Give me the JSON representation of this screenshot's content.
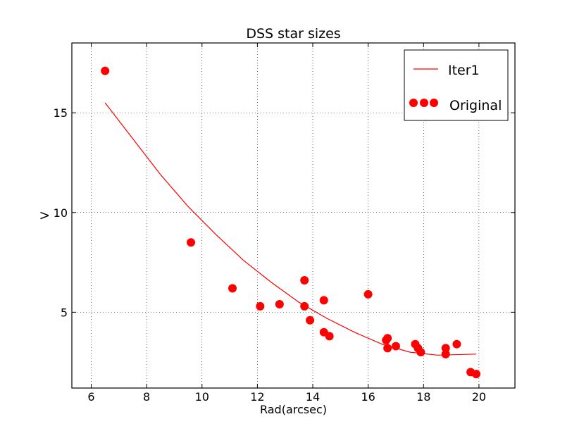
{
  "chart_data": {
    "type": "scatter",
    "title": "DSS star sizes",
    "xlabel": "Rad(arcsec)",
    "ylabel": "V",
    "xlim": [
      5.3,
      21.3
    ],
    "ylim": [
      1.2,
      18.5
    ],
    "xticks": [
      6,
      8,
      10,
      12,
      14,
      16,
      18,
      20
    ],
    "yticks": [
      5,
      10,
      15
    ],
    "grid": true,
    "legend_position": "top-right",
    "series": [
      {
        "name": "Iter1",
        "kind": "line",
        "color": "#ff0000",
        "x": [
          6.5,
          7.5,
          8.5,
          9.5,
          10.5,
          11.5,
          12.5,
          13.5,
          14.5,
          15.5,
          16.5,
          17.5,
          18.5,
          19.9
        ],
        "y": [
          15.5,
          13.7,
          11.9,
          10.3,
          8.9,
          7.6,
          6.5,
          5.5,
          4.7,
          4.0,
          3.4,
          3.0,
          2.85,
          2.9
        ]
      },
      {
        "name": "Original",
        "kind": "scatter",
        "color": "#ff0000",
        "x": [
          6.5,
          9.6,
          11.1,
          12.1,
          12.8,
          13.7,
          13.7,
          13.9,
          14.4,
          14.4,
          14.6,
          16.0,
          16.65,
          16.7,
          16.7,
          17.0,
          17.7,
          17.8,
          17.9,
          18.8,
          18.8,
          19.2,
          19.7,
          19.9
        ],
        "y": [
          17.1,
          8.5,
          6.2,
          5.3,
          5.4,
          6.6,
          5.3,
          4.6,
          5.6,
          4.0,
          3.8,
          5.9,
          3.6,
          3.7,
          3.2,
          3.3,
          3.4,
          3.2,
          3.0,
          3.2,
          2.9,
          3.4,
          2.0,
          1.9
        ]
      }
    ],
    "legend": {
      "entries": [
        "Iter1",
        "Original"
      ]
    },
    "colors": {
      "series": "#ff0000",
      "axes": "#000000",
      "grid": "#000000",
      "background": "#ffffff"
    }
  }
}
